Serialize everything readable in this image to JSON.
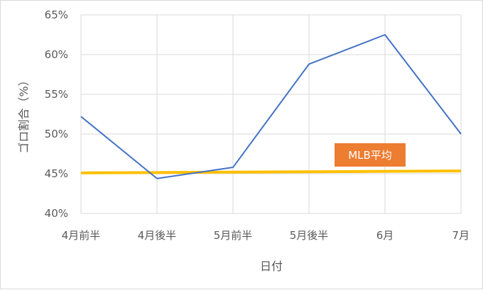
{
  "chart_data": {
    "type": "line",
    "categories": [
      "4月前半",
      "4月後半",
      "5月前半",
      "5月後半",
      "6月",
      "7月"
    ],
    "series": [
      {
        "values": [
          52.2,
          44.4,
          45.8,
          58.8,
          62.5,
          50.0
        ]
      },
      {
        "values": [
          45.1,
          45.15,
          45.2,
          45.25,
          45.3,
          45.35
        ]
      }
    ],
    "xlabel": "日付",
    "ylabel": "ゴロ割合（%）",
    "ylim": [
      40,
      65
    ],
    "y_ticks": [
      "40%",
      "45%",
      "50%",
      "55%",
      "60%",
      "65%"
    ],
    "grid": true,
    "annotation": "MLB平均",
    "colors": {
      "series_line": "#4472c4",
      "average_line": "#ffc000",
      "annotation_bg": "#ed7d31",
      "grid": "#d9d9d9"
    }
  }
}
